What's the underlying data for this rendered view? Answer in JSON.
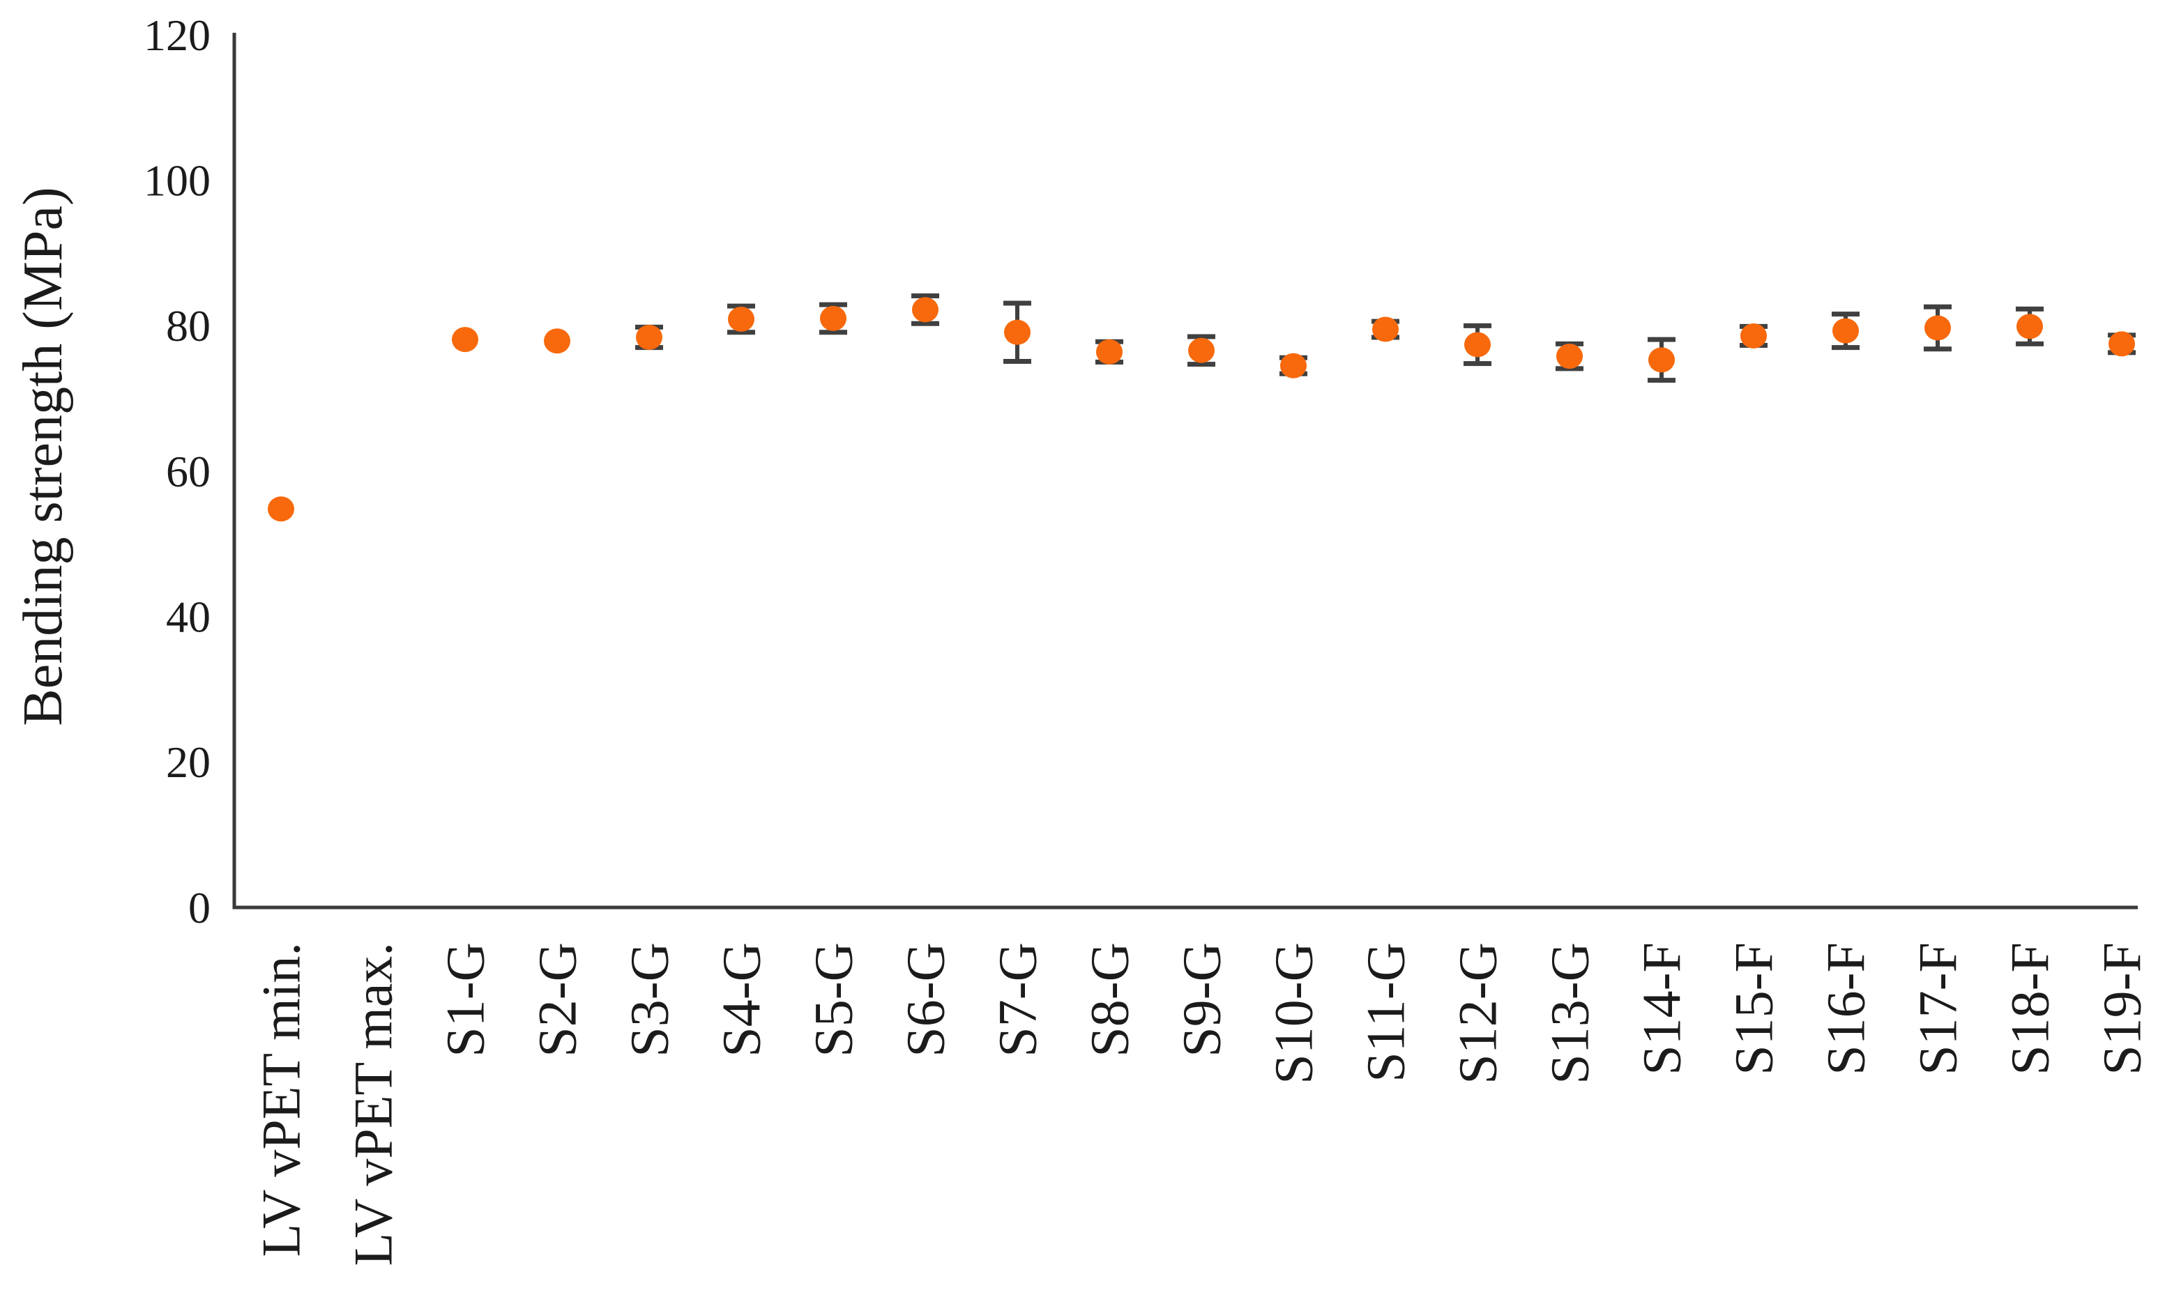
{
  "figure": {
    "background": "#ffffff",
    "description": "Scatter plot of bending strength with standard-deviation error bars for LV vPET references and samples S1-S19"
  },
  "chart_data": {
    "type": "scatter",
    "title": "",
    "xlabel": "",
    "ylabel": "Bending strength (MPa)",
    "ylim": [
      0,
      120
    ],
    "yticks": [
      0,
      20,
      40,
      60,
      80,
      100,
      120
    ],
    "grid": false,
    "legend": null,
    "marker_color": "#F7690C",
    "errorbar_color": "#404040",
    "axis_color": "#3a3a3a",
    "text_color": "#1b1b1b",
    "categories": [
      "LV vPET min.",
      "LV vPET max.",
      "S1-G",
      "S2-G",
      "S3-G",
      "S4-G",
      "S5-G",
      "S6-G",
      "S7-G",
      "S8-G",
      "S9-G",
      "S10-G",
      "S11-G",
      "S12-G",
      "S13-G",
      "S14-F",
      "S15-F",
      "S16-F",
      "S17-F",
      "S18-F",
      "S19-F"
    ],
    "series": [
      {
        "name": "Bending strength",
        "values": [
          54.8,
          null,
          78.1,
          77.9,
          78.4,
          80.9,
          81.0,
          82.2,
          79.1,
          76.4,
          76.6,
          74.5,
          79.5,
          77.4,
          75.8,
          75.3,
          78.6,
          79.3,
          79.7,
          79.9,
          77.5
        ],
        "errors": [
          null,
          null,
          null,
          null,
          1.4,
          1.8,
          1.9,
          1.9,
          4.0,
          1.4,
          1.9,
          1.1,
          1.1,
          2.6,
          1.7,
          2.8,
          1.3,
          2.3,
          2.9,
          2.4,
          1.2
        ]
      }
    ]
  }
}
